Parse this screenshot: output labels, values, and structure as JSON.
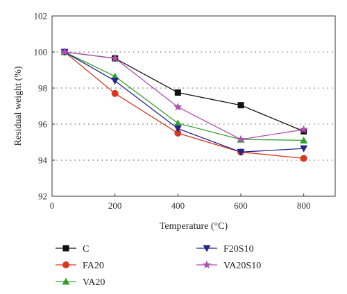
{
  "chart_data": {
    "type": "line",
    "xlabel": "Temperature (°C)",
    "ylabel": "Residual weight (%)",
    "xlim": [
      0,
      900
    ],
    "ylim": [
      92,
      102
    ],
    "xticks": [
      0,
      200,
      400,
      600,
      800
    ],
    "yticks": [
      92,
      94,
      96,
      98,
      100,
      102
    ],
    "grid": "horizontal dotted",
    "legend_position": "bottom, two columns",
    "x": [
      40,
      200,
      400,
      600,
      800
    ],
    "series": [
      {
        "name": "C",
        "color": "#111111",
        "marker": "square",
        "values": [
          100,
          99.65,
          97.75,
          97.05,
          95.6
        ]
      },
      {
        "name": "FA20",
        "color": "#d9381e",
        "marker": "circle",
        "values": [
          100,
          97.7,
          95.5,
          94.45,
          94.1
        ]
      },
      {
        "name": "VA20",
        "color": "#33a02c",
        "marker": "triangle-up",
        "values": [
          100,
          98.65,
          96.05,
          95.15,
          95.1
        ]
      },
      {
        "name": "F20S10",
        "color": "#24248f",
        "marker": "triangle-down",
        "values": [
          100,
          98.4,
          95.75,
          94.45,
          94.65
        ]
      },
      {
        "name": "VA20S10",
        "color": "#b04fb0",
        "marker": "star",
        "values": [
          100,
          99.65,
          96.95,
          95.15,
          95.7
        ]
      }
    ]
  }
}
